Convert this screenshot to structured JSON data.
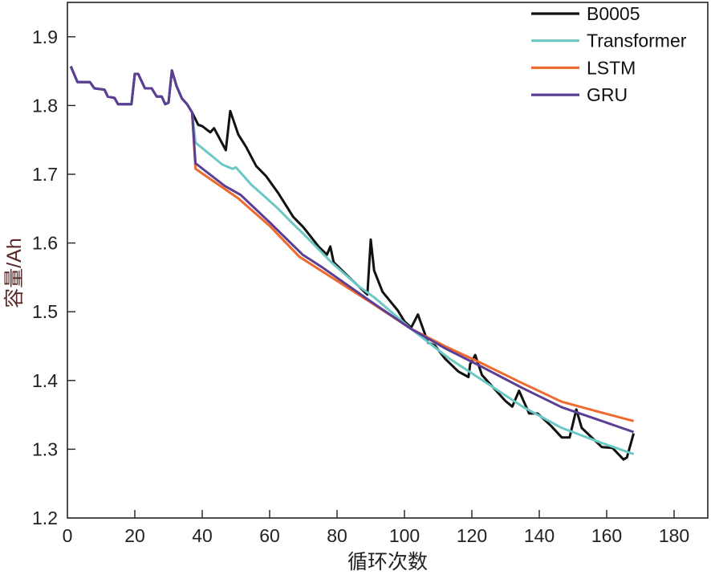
{
  "chart_data": {
    "type": "line",
    "title": "",
    "xlabel": "循环次数",
    "ylabel": "容量/Ah",
    "xlim": [
      0,
      190
    ],
    "ylim": [
      1.2,
      1.95
    ],
    "xticks": [
      0,
      20,
      40,
      60,
      80,
      100,
      120,
      140,
      160,
      180
    ],
    "xtick_labels": [
      "0",
      "20",
      "40",
      "60",
      "80",
      "100",
      "120",
      "140",
      "160",
      "180"
    ],
    "yticks": [
      1.2,
      1.3,
      1.4,
      1.5,
      1.6,
      1.7,
      1.8,
      1.9
    ],
    "ytick_labels": [
      "1.2",
      "1.3",
      "1.4",
      "1.5",
      "1.6",
      "1.7",
      "1.8",
      "1.9"
    ],
    "grid": false,
    "legend_position": "top-right",
    "ylabel_color": "#5a2a2a",
    "series": [
      {
        "name": "B0005",
        "color": "#111111",
        "x": [
          1,
          3,
          6.7,
          8,
          11,
          12,
          14,
          15,
          19,
          20,
          21,
          23,
          25,
          26.5,
          28,
          29,
          30,
          31,
          32.4,
          34,
          35.5,
          37,
          38.8,
          40,
          42.4,
          43.5,
          47,
          48.3,
          50.7,
          53,
          56,
          59,
          62.5,
          67,
          70,
          74.5,
          77,
          78,
          79,
          84,
          89,
          90,
          91,
          93.5,
          98,
          100,
          102,
          104,
          107,
          109,
          112,
          116,
          119,
          119.5,
          121,
          123,
          130,
          132,
          134,
          137,
          139.5,
          143.5,
          146.7,
          149,
          151,
          152.6,
          158.6,
          161.7,
          165,
          166,
          168
        ],
        "y": [
          1.857,
          1.834,
          1.834,
          1.825,
          1.823,
          1.813,
          1.811,
          1.802,
          1.802,
          1.846,
          1.846,
          1.825,
          1.825,
          1.813,
          1.813,
          1.802,
          1.804,
          1.851,
          1.828,
          1.81,
          1.802,
          1.79,
          1.772,
          1.77,
          1.761,
          1.767,
          1.735,
          1.792,
          1.758,
          1.74,
          1.712,
          1.697,
          1.673,
          1.638,
          1.623,
          1.595,
          1.583,
          1.595,
          1.572,
          1.548,
          1.525,
          1.605,
          1.56,
          1.529,
          1.502,
          1.486,
          1.477,
          1.496,
          1.455,
          1.451,
          1.432,
          1.413,
          1.405,
          1.424,
          1.437,
          1.408,
          1.37,
          1.362,
          1.385,
          1.352,
          1.352,
          1.334,
          1.317,
          1.317,
          1.358,
          1.331,
          1.303,
          1.302,
          1.285,
          1.288,
          1.323
        ]
      },
      {
        "name": "Transformer",
        "color": "#6cc8c4",
        "x": [
          37,
          38,
          46,
          49,
          50,
          54.5,
          58,
          62.5,
          66.5,
          70.5,
          78.3,
          86.4,
          91,
          102,
          113,
          124.5,
          135,
          146.7,
          158,
          168
        ],
        "y": [
          1.79,
          1.746,
          1.714,
          1.708,
          1.71,
          1.685,
          1.67,
          1.65,
          1.63,
          1.611,
          1.572,
          1.537,
          1.521,
          1.475,
          1.433,
          1.396,
          1.362,
          1.331,
          1.31,
          1.293
        ]
      },
      {
        "name": "LSTM",
        "color": "#ee6a2f",
        "x": [
          37,
          38,
          50.7,
          60,
          68.8,
          75.2,
          90.2,
          102,
          112,
          122.9,
          135,
          146.7,
          158,
          168
        ],
        "y": [
          1.79,
          1.708,
          1.665,
          1.625,
          1.58,
          1.56,
          1.513,
          1.475,
          1.45,
          1.425,
          1.396,
          1.369,
          1.354,
          1.341
        ]
      },
      {
        "name": "GRU",
        "color": "#5b3f94",
        "x": [
          1,
          3,
          6.7,
          8,
          11,
          12,
          14,
          15,
          19,
          20,
          21,
          23,
          25,
          26.5,
          28,
          29,
          30,
          31,
          32.4,
          34,
          35.5,
          37,
          38,
          46.7,
          51.4,
          60,
          69.8,
          75.2,
          90,
          102,
          112,
          122.9,
          135,
          146.7,
          158,
          168
        ],
        "y": [
          1.857,
          1.834,
          1.834,
          1.825,
          1.823,
          1.813,
          1.811,
          1.802,
          1.802,
          1.846,
          1.846,
          1.825,
          1.825,
          1.813,
          1.813,
          1.802,
          1.804,
          1.851,
          1.828,
          1.81,
          1.802,
          1.79,
          1.716,
          1.683,
          1.67,
          1.63,
          1.583,
          1.566,
          1.515,
          1.475,
          1.447,
          1.42,
          1.389,
          1.361,
          1.342,
          1.325
        ]
      }
    ]
  }
}
